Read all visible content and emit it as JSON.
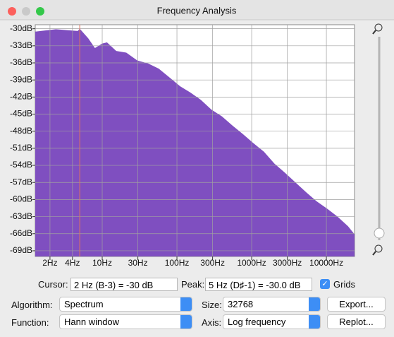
{
  "window": {
    "title": "Frequency Analysis"
  },
  "plot": {
    "type": "area",
    "color": "#7f4fc0",
    "grid": true,
    "xlim": [
      1.27,
      23800
    ],
    "ylim": [
      -70,
      -29.3
    ],
    "log_x": true,
    "xticks": [
      {
        "value": 2,
        "label": "2Hz"
      },
      {
        "value": 4,
        "label": "4Hz"
      },
      {
        "value": 10,
        "label": "10Hz"
      },
      {
        "value": 30,
        "label": "30Hz"
      },
      {
        "value": 100,
        "label": "100Hz"
      },
      {
        "value": 300,
        "label": "300Hz"
      },
      {
        "value": 1000,
        "label": "1000Hz"
      },
      {
        "value": 3000,
        "label": "3000Hz"
      },
      {
        "value": 10000,
        "label": "10000Hz"
      }
    ],
    "yticks": [
      {
        "value": -30,
        "label": "-30dB"
      },
      {
        "value": -33,
        "label": "-33dB"
      },
      {
        "value": -36,
        "label": "-36dB"
      },
      {
        "value": -39,
        "label": "-39dB"
      },
      {
        "value": -42,
        "label": "-42dB"
      },
      {
        "value": -45,
        "label": "-45dB"
      },
      {
        "value": -48,
        "label": "-48dB"
      },
      {
        "value": -51,
        "label": "-51dB"
      },
      {
        "value": -54,
        "label": "-54dB"
      },
      {
        "value": -57,
        "label": "-57dB"
      },
      {
        "value": -60,
        "label": "-60dB"
      },
      {
        "value": -63,
        "label": "-63dB"
      },
      {
        "value": -66,
        "label": "-66dB"
      },
      {
        "value": -69,
        "label": "-69dB"
      }
    ],
    "marker": {
      "x": 5,
      "color": "#e0735a"
    },
    "x": [
      1.27,
      2.4,
      4.7,
      5,
      6.5,
      8,
      10,
      11.6,
      15.4,
      21,
      29.6,
      41,
      57,
      80,
      110,
      151,
      209,
      289,
      400,
      552,
      763,
      1055,
      1460,
      2020,
      2790,
      3860,
      5330,
      7370,
      10200,
      14100,
      19500,
      23800
    ],
    "values": [
      -30.5,
      -30.1,
      -30.4,
      -30.0,
      -31.7,
      -33.4,
      -32.6,
      -32.4,
      -33.9,
      -34.2,
      -35.6,
      -36.1,
      -37.0,
      -38.6,
      -40.1,
      -41.2,
      -42.5,
      -44.2,
      -45.4,
      -47.0,
      -48.5,
      -50.1,
      -51.6,
      -53.7,
      -55.3,
      -57.0,
      -58.7,
      -60.3,
      -61.6,
      -63.0,
      -64.7,
      -66.1
    ]
  },
  "controls": {
    "cursor_label": "Cursor:",
    "cursor_value": "2 Hz (B-3) = -30 dB",
    "peak_label": "Peak:",
    "peak_value": "5 Hz (D♯-1) = -30.0 dB",
    "grids_label": "Grids",
    "algorithm_label": "Algorithm:",
    "algorithm": "Spectrum",
    "size_label": "Size:",
    "size": "32768",
    "export": "Export...",
    "function_label": "Function:",
    "function": "Hann window",
    "axis_label": "Axis:",
    "axis": "Log frequency",
    "replot": "Replot..."
  }
}
